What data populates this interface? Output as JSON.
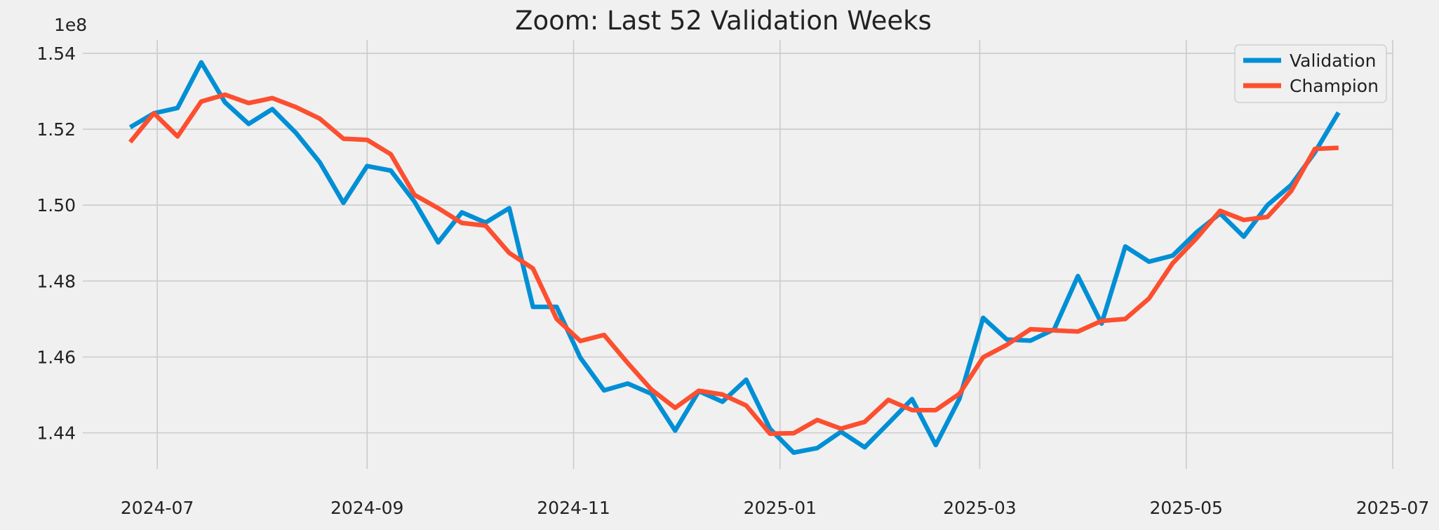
{
  "chart_data": {
    "type": "line",
    "title": "Zoom: Last 52 Validation Weeks",
    "xlabel": "",
    "ylabel": "",
    "y_offset_label": "1e8",
    "x_ticks": [
      "2024-07",
      "2024-09",
      "2024-11",
      "2025-01",
      "2025-03",
      "2025-05",
      "2025-07"
    ],
    "y_ticks": [
      "1.44",
      "1.46",
      "1.48",
      "1.50",
      "1.52",
      "1.54"
    ],
    "xlim": [
      "2024-06-09",
      "2025-07-01"
    ],
    "ylim": [
      1.4305,
      1.5435
    ],
    "grid": true,
    "legend_position": "top-right",
    "colors": {
      "Validation": "#008fd5",
      "Champion": "#fc4f30",
      "background": "#f0f0f0",
      "grid": "#cbcbcb"
    },
    "x": [
      "2024-06-23",
      "2024-06-30",
      "2024-07-07",
      "2024-07-14",
      "2024-07-21",
      "2024-07-28",
      "2024-08-04",
      "2024-08-11",
      "2024-08-18",
      "2024-08-25",
      "2024-09-01",
      "2024-09-08",
      "2024-09-15",
      "2024-09-22",
      "2024-09-29",
      "2024-10-06",
      "2024-10-13",
      "2024-10-20",
      "2024-10-27",
      "2024-11-03",
      "2024-11-10",
      "2024-11-17",
      "2024-11-24",
      "2024-12-01",
      "2024-12-08",
      "2024-12-15",
      "2024-12-22",
      "2024-12-29",
      "2025-01-05",
      "2025-01-12",
      "2025-01-19",
      "2025-01-26",
      "2025-02-02",
      "2025-02-09",
      "2025-02-16",
      "2025-02-23",
      "2025-03-02",
      "2025-03-09",
      "2025-03-16",
      "2025-03-23",
      "2025-03-30",
      "2025-04-06",
      "2025-04-13",
      "2025-04-20",
      "2025-04-27",
      "2025-05-04",
      "2025-05-11",
      "2025-05-18",
      "2025-05-25",
      "2025-06-01",
      "2025-06-08",
      "2025-06-15"
    ],
    "series": [
      {
        "name": "Validation",
        "values": [
          1.5205,
          1.5242,
          1.5256,
          1.5376,
          1.5271,
          1.5214,
          1.5253,
          1.519,
          1.5113,
          1.5006,
          1.5103,
          1.5091,
          1.5009,
          1.4902,
          1.4981,
          1.4954,
          1.4992,
          1.4732,
          1.4732,
          1.4598,
          1.4512,
          1.453,
          1.4503,
          1.4406,
          1.451,
          1.4482,
          1.454,
          1.4411,
          1.4348,
          1.436,
          1.4403,
          1.4362,
          1.4425,
          1.4489,
          1.4368,
          1.449,
          1.4703,
          1.4646,
          1.4643,
          1.4673,
          1.4813,
          1.4688,
          1.4891,
          1.4851,
          1.4867,
          1.4928,
          1.4978,
          1.4917,
          1.5,
          1.5053,
          1.5139,
          1.5244
        ]
      },
      {
        "name": "Champion",
        "values": [
          1.5166,
          1.5242,
          1.5181,
          1.5273,
          1.5291,
          1.5269,
          1.5282,
          1.5258,
          1.5228,
          1.5175,
          1.5172,
          1.5134,
          1.5027,
          1.4992,
          1.4953,
          1.4946,
          1.4874,
          1.4833,
          1.47,
          1.4642,
          1.4658,
          1.4584,
          1.4514,
          1.4466,
          1.4511,
          1.4501,
          1.4472,
          1.4398,
          1.4399,
          1.4434,
          1.4411,
          1.4429,
          1.4487,
          1.446,
          1.446,
          1.4503,
          1.4599,
          1.4632,
          1.4673,
          1.467,
          1.4667,
          1.4695,
          1.47,
          1.4754,
          1.4847,
          1.4912,
          1.4985,
          1.4961,
          1.4969,
          1.5037,
          1.5148,
          1.5151
        ]
      }
    ]
  }
}
